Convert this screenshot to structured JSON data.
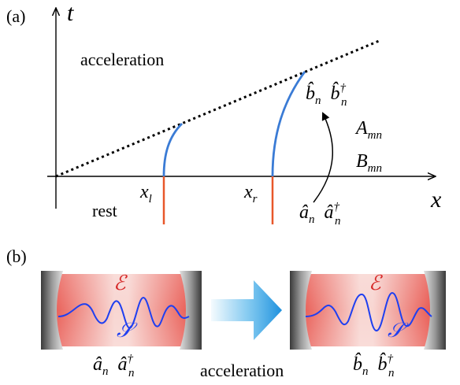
{
  "panel_a": {
    "tag": "(a)",
    "t_axis_label": "t",
    "x_axis_label": "x",
    "acceleration_label": "acceleration",
    "rest_label": "rest",
    "x_left_label": "x",
    "x_left_sub": "l",
    "x_right_label": "x",
    "x_right_sub": "r",
    "initial_ops": {
      "a1": "â",
      "a1_sub": "n",
      "a2": "â",
      "a2_sub": "n",
      "a2_sup": "†"
    },
    "final_ops": {
      "b1": "b̂",
      "b1_sub": "n",
      "b2": "b̂",
      "b2_sub": "n",
      "b2_sup": "†"
    },
    "coeffs": {
      "A": "A",
      "A_sub": "mn",
      "B": "B",
      "B_sub": "mn"
    }
  },
  "panel_b": {
    "tag": "(b)",
    "field_left": "ℰ",
    "system_left": "𝒮",
    "field_right": "ℰ",
    "system_right": "𝒮",
    "left_ops": {
      "a1": "â",
      "a1_sub": "n",
      "a2": "â",
      "a2_sub": "n",
      "a2_sup": "†"
    },
    "right_ops": {
      "b1": "b̂",
      "b1_sub": "n",
      "b2": "b̂",
      "b2_sub": "n",
      "b2_sup": "†"
    },
    "arrow_label": "acceleration"
  },
  "colors": {
    "trajectory_blue": "#3a7bd5",
    "rest_red": "#e8572a",
    "field_red": "#e8574f",
    "wave_blue": "#1f3ff0",
    "arrow_cyan": "#29a3e6",
    "mirror_gray": "#555555"
  }
}
